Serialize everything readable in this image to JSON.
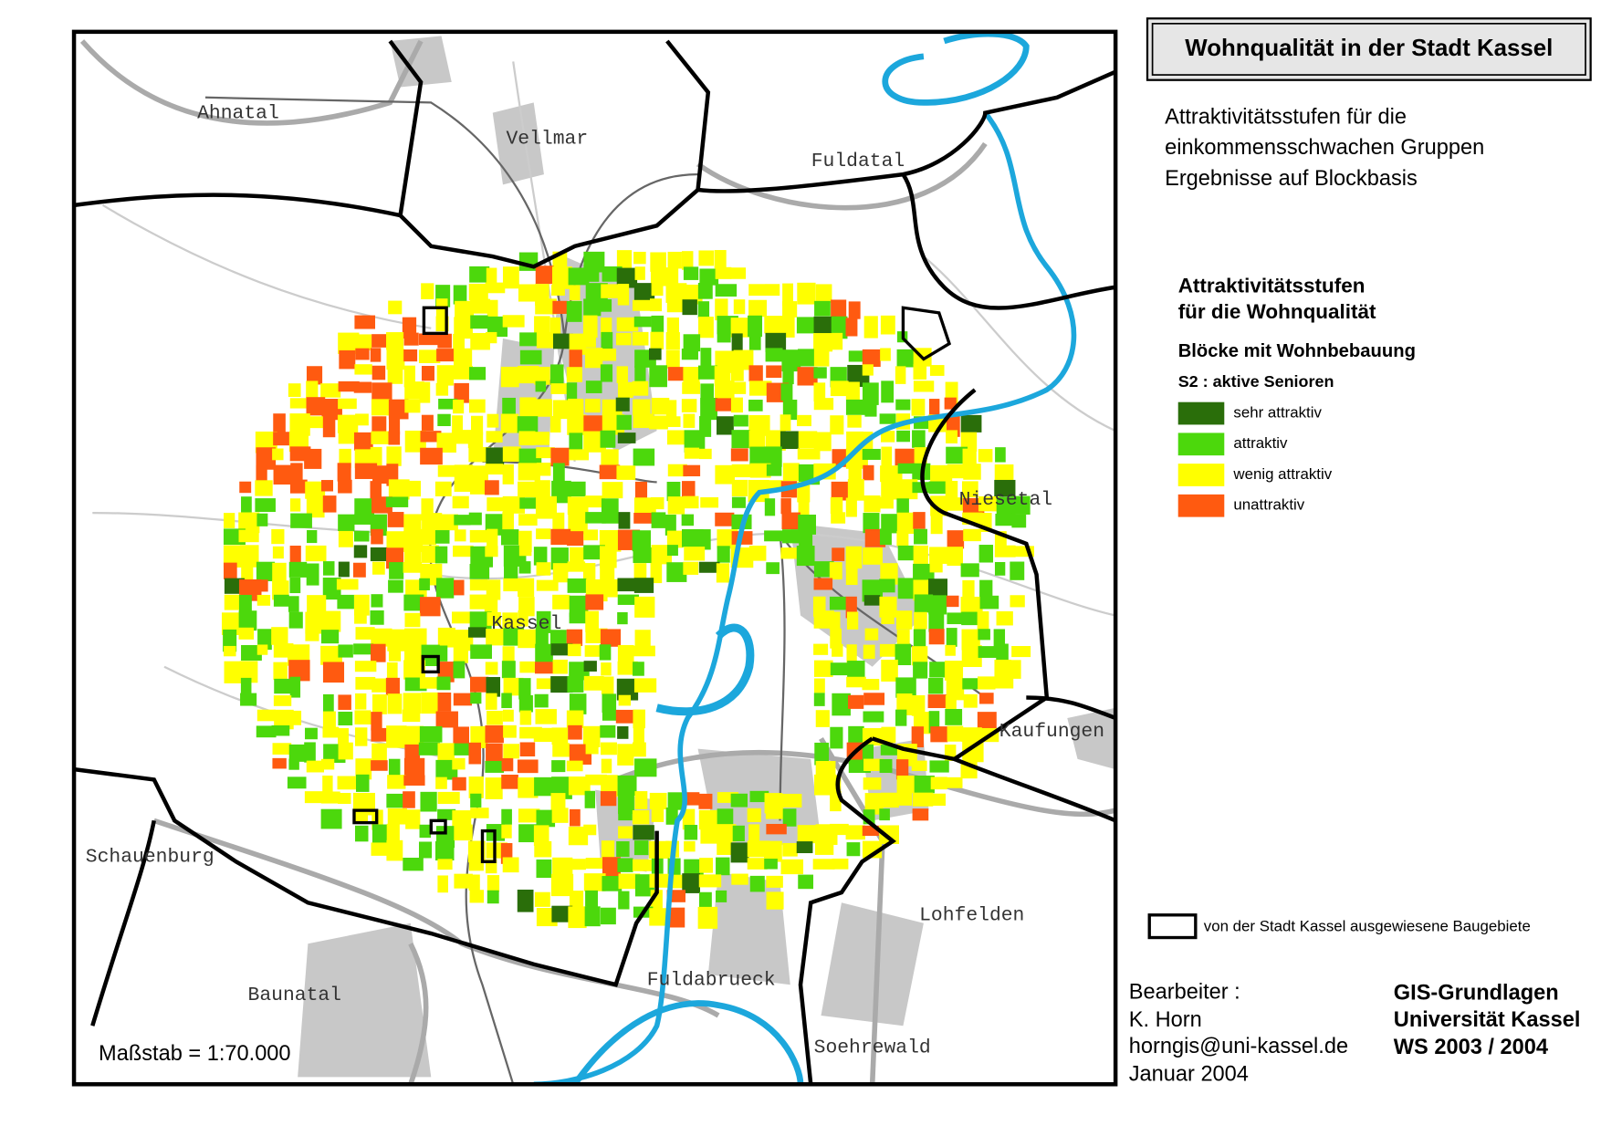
{
  "title": "Wohnqualität in der Stadt Kassel",
  "subtitle": [
    "Attraktivitätsstufen für die",
    "einkommensschwachen Gruppen",
    "Ergebnisse auf Blockbasis"
  ],
  "legend": {
    "title": [
      "Attraktivitätsstufen",
      "für die Wohnqualität"
    ],
    "heading": "Blöcke mit Wohnbebauung",
    "group": "S2 : aktive Senioren",
    "items": [
      {
        "label": "sehr attraktiv",
        "color": "#2a6e0a"
      },
      {
        "label": "attraktiv",
        "color": "#4cd80c"
      },
      {
        "label": "wenig attraktiv",
        "color": "#ffff00"
      },
      {
        "label": "unattraktiv",
        "color": "#ff5a10"
      }
    ],
    "outline_label": "von der Stadt Kassel ausgewiesene Baugebiete"
  },
  "places": [
    "Ahnatal",
    "Vellmar",
    "Fuldatal",
    "Niesetal",
    "Kassel",
    "Kaufungen",
    "Schauenburg",
    "Lohfelden",
    "Baunatal",
    "Fuldabrueck",
    "Soehrewald"
  ],
  "scale": "Maßstab =   1:70.000",
  "author": [
    "Bearbeiter :",
    "K. Horn",
    "horngis@uni-kassel.de",
    "Januar 2004"
  ],
  "course": [
    "GIS-Grundlagen",
    "Universität Kassel",
    "WS 2003 / 2004"
  ]
}
